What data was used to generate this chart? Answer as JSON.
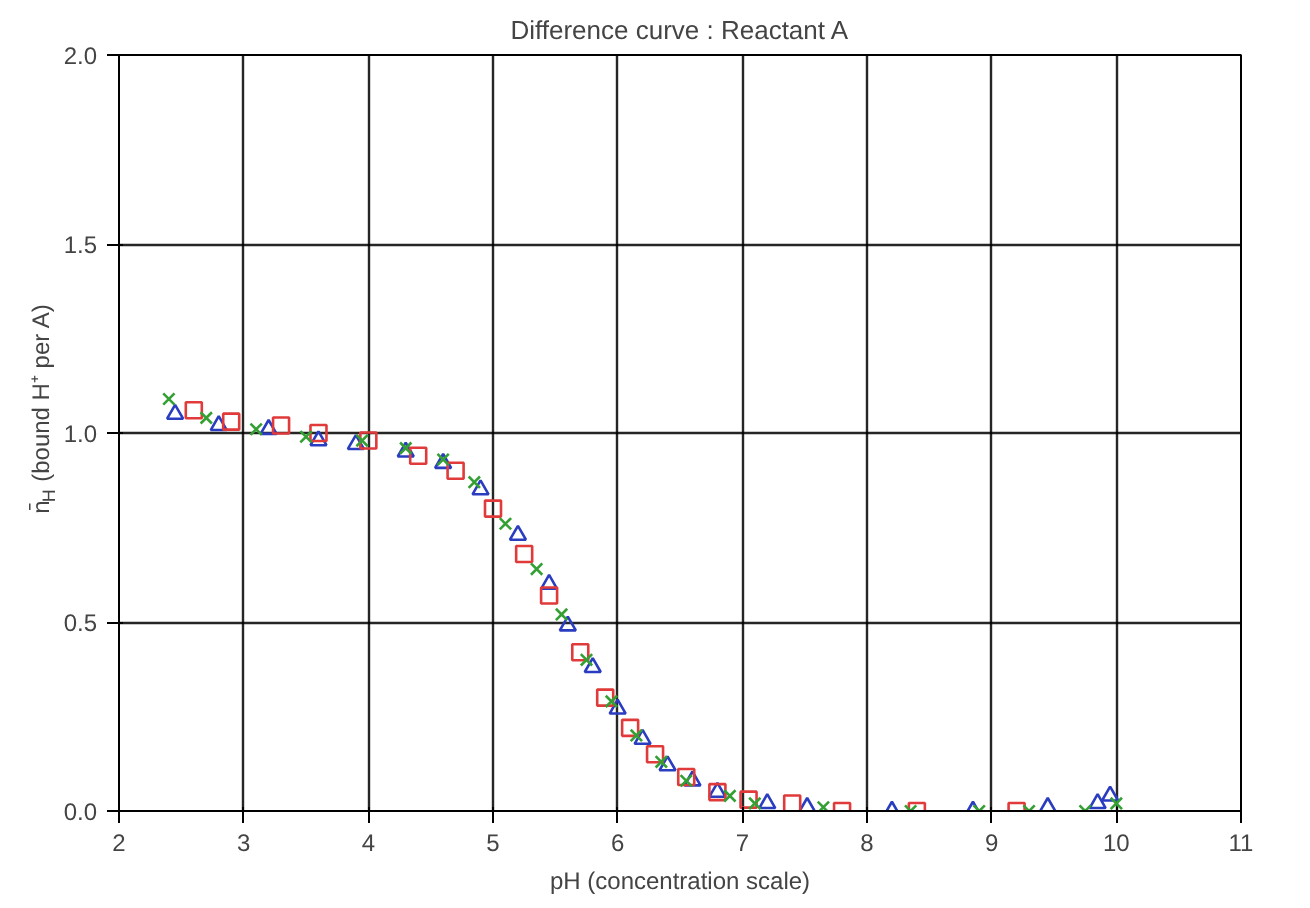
{
  "chart_data": {
    "type": "scatter",
    "title": "Difference curve : Reactant A",
    "xlabel": "pH (concentration scale)",
    "ylabel": "n̄$_{H}$ (bound H⁺ per A)",
    "xlim": [
      2,
      11
    ],
    "xticks": [
      2,
      3,
      4,
      5,
      6,
      7,
      8,
      9,
      10,
      11
    ],
    "ylim": [
      0,
      2
    ],
    "yticks": [
      {
        "value": 0,
        "label": "0.0"
      },
      0.5,
      {
        "value": 1,
        "label": "1.0"
      },
      1.5,
      {
        "value": 2,
        "label": "2.0"
      }
    ],
    "grid": true,
    "series": [
      {
        "color": "#2a3cc0",
        "marker": "triangle",
        "x": [
          2.45,
          2.8,
          3.2,
          3.6,
          3.9,
          4.3,
          4.6,
          4.9,
          5.2,
          5.45,
          5.6,
          5.8,
          6.0,
          6.2,
          6.4,
          6.6,
          6.8,
          7.2,
          7.52,
          8.2,
          8.85,
          9.45,
          9.85,
          9.95
        ],
        "values": [
          1.05,
          1.02,
          1.01,
          0.98,
          0.97,
          0.95,
          0.92,
          0.85,
          0.73,
          0.6,
          0.49,
          0.38,
          0.27,
          0.19,
          0.12,
          0.08,
          0.05,
          0.02,
          0.01,
          0.0,
          0.0,
          0.01,
          0.02,
          0.04
        ]
      },
      {
        "color": "#e03a3a",
        "marker": "square",
        "x": [
          2.6,
          2.9,
          3.3,
          3.6,
          4.0,
          4.4,
          4.7,
          5.0,
          5.25,
          5.45,
          5.7,
          5.9,
          6.1,
          6.3,
          6.55,
          6.8,
          7.05,
          7.4,
          7.8,
          8.4,
          9.2
        ],
        "values": [
          1.06,
          1.03,
          1.02,
          1.0,
          0.98,
          0.94,
          0.9,
          0.8,
          0.68,
          0.57,
          0.42,
          0.3,
          0.22,
          0.15,
          0.09,
          0.05,
          0.03,
          0.02,
          0.0,
          0.0,
          0.0
        ]
      },
      {
        "color": "#34a034",
        "marker": "cross",
        "x": [
          2.4,
          2.7,
          3.1,
          3.5,
          3.95,
          4.3,
          4.6,
          4.85,
          5.1,
          5.35,
          5.55,
          5.75,
          5.95,
          6.15,
          6.35,
          6.55,
          6.9,
          7.1,
          7.65,
          8.35,
          8.9,
          9.3,
          9.75,
          10.0
        ],
        "values": [
          1.09,
          1.04,
          1.01,
          0.99,
          0.98,
          0.96,
          0.93,
          0.87,
          0.76,
          0.64,
          0.52,
          0.4,
          0.29,
          0.2,
          0.13,
          0.08,
          0.04,
          0.02,
          0.01,
          0.0,
          0.0,
          0.0,
          0.0,
          0.02
        ]
      }
    ]
  }
}
